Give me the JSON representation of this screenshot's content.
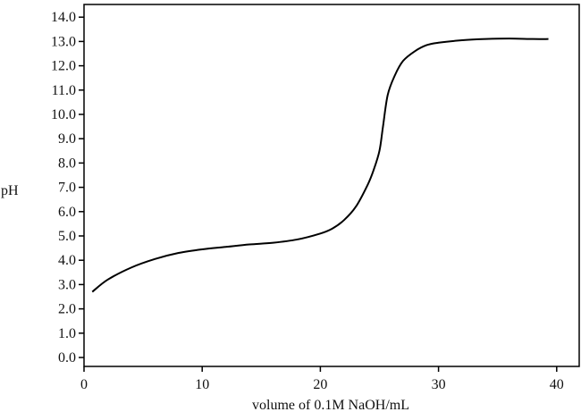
{
  "chart_data": {
    "type": "line",
    "title": "",
    "xlabel": "volume of 0.1M NaOH/mL",
    "ylabel": "pH",
    "xlim": [
      0,
      40
    ],
    "ylim": [
      0,
      14
    ],
    "xticks": [
      0,
      10,
      20,
      30,
      40
    ],
    "xtick_labels": [
      "0",
      "10",
      "20",
      "30",
      "40"
    ],
    "yticks": [
      0,
      1,
      2,
      3,
      4,
      5,
      6,
      7,
      8,
      9,
      10,
      11,
      12,
      13,
      14
    ],
    "ytick_labels": [
      "0.0",
      "1.0",
      "2.0",
      "3.0",
      "4.0",
      "5.0",
      "6.0",
      "7.0",
      "8.0",
      "9.0",
      "10.0",
      "11.0",
      "12.0",
      "13.0",
      "14.0"
    ],
    "grid": false,
    "legend": "none",
    "line_color": "#000000",
    "series": [
      {
        "x": [
          0.7,
          2,
          4,
          6,
          8,
          10,
          12,
          14,
          16,
          18,
          20,
          21,
          22,
          23,
          24,
          24.5,
          25,
          25.3,
          25.7,
          26.3,
          27,
          28,
          29,
          30,
          32,
          34,
          36,
          38,
          39.3
        ],
        "y": [
          2.7,
          3.2,
          3.7,
          4.05,
          4.3,
          4.45,
          4.55,
          4.65,
          4.72,
          4.85,
          5.1,
          5.3,
          5.65,
          6.2,
          7.1,
          7.7,
          8.5,
          9.5,
          10.8,
          11.6,
          12.2,
          12.6,
          12.85,
          12.95,
          13.05,
          13.1,
          13.12,
          13.1,
          13.1
        ]
      }
    ]
  }
}
